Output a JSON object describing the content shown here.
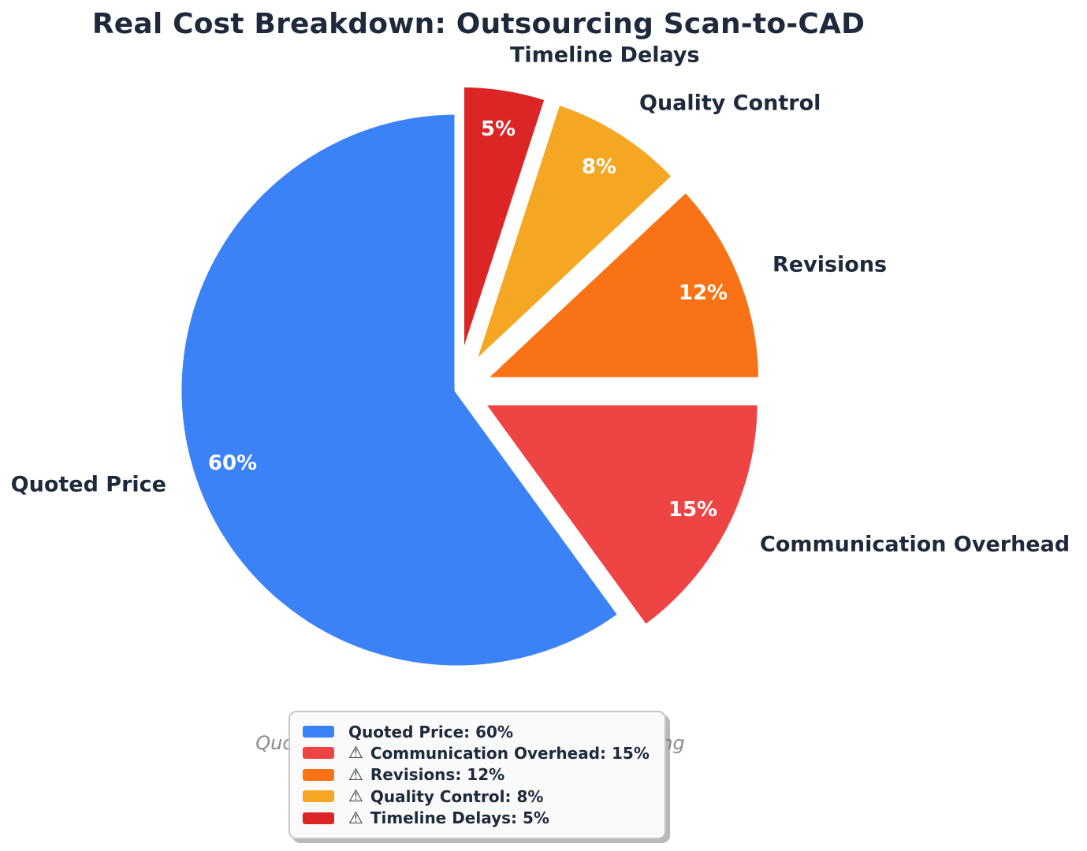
{
  "icons": {
    "warning": "⚠"
  },
  "chart_data": {
    "type": "pie",
    "title": "Real Cost Breakdown: Outsourcing Scan-to-CAD",
    "subtitle": "Quoted price is only 60% of total outsourcing cost",
    "start_angle": 90,
    "direction": "counterclockwise",
    "total": 100,
    "slices": [
      {
        "label": "Quoted Price",
        "value": 60,
        "pct_label": "60%",
        "color": "#3B82F6",
        "exploded": false,
        "warning": false
      },
      {
        "label": "Communication Overhead",
        "value": 15,
        "pct_label": "15%",
        "color": "#EF4444",
        "exploded": true,
        "warning": true
      },
      {
        "label": "Revisions",
        "value": 12,
        "pct_label": "12%",
        "color": "#F97316",
        "exploded": true,
        "warning": true
      },
      {
        "label": "Quality Control",
        "value": 8,
        "pct_label": "8%",
        "color": "#F5A623",
        "exploded": true,
        "warning": true
      },
      {
        "label": "Timeline Delays",
        "value": 5,
        "pct_label": "5%",
        "color": "#DC2626",
        "exploded": true,
        "warning": true
      }
    ],
    "legend": {
      "position": "bottom-center",
      "items": [
        {
          "swatch_color": "#3B82F6",
          "warning": false,
          "label": "Quoted Price: 60%"
        },
        {
          "swatch_color": "#EF4444",
          "warning": true,
          "label": "Communication Overhead: 15%"
        },
        {
          "swatch_color": "#F97316",
          "warning": true,
          "label": "Revisions: 12%"
        },
        {
          "swatch_color": "#F5A623",
          "warning": true,
          "label": "Quality Control: 8%"
        },
        {
          "swatch_color": "#DC2626",
          "warning": true,
          "label": "Timeline Delays: 5%"
        }
      ]
    },
    "colors": {
      "title_text": "#1E293B",
      "slice_label_text": "#1E293B",
      "percent_text": "#FFFFFF",
      "subtitle_text": "#8C8C8C",
      "background": "#FFFFFF"
    }
  }
}
